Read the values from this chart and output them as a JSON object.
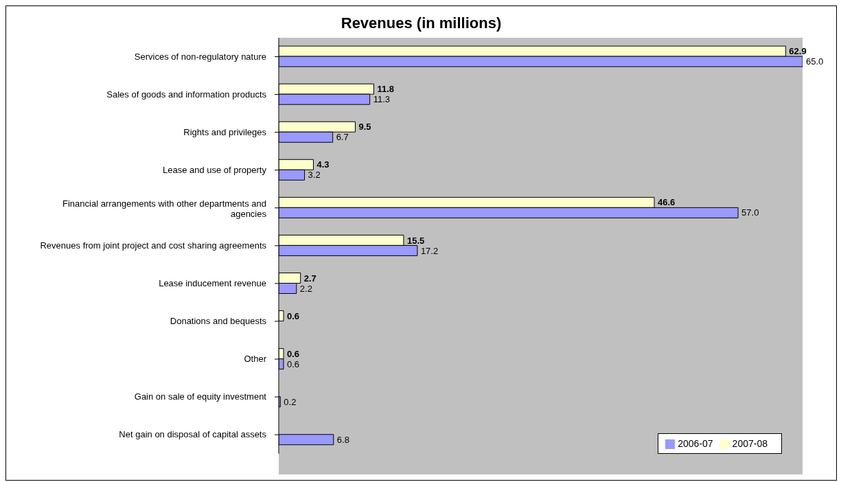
{
  "chart_data": {
    "type": "bar",
    "orientation": "horizontal",
    "title": "Revenues (in millions)",
    "categories": [
      "Services of non-regulatory nature",
      "Sales of goods and information products",
      "Rights and privileges",
      "Lease and use of property",
      "Financial arrangements with other departments and agencies",
      "Revenues from joint project and cost sharing agreements",
      "Lease inducement revenue",
      "Donations and bequests",
      "Other",
      "Gain on sale of equity investment",
      "Net gain on disposal of capital assets"
    ],
    "series": [
      {
        "name": "2007-08",
        "color": "#ffffcc",
        "values": [
          62.9,
          11.8,
          9.5,
          4.3,
          46.6,
          15.5,
          2.7,
          0.6,
          0.6,
          null,
          null
        ],
        "value_labels": [
          "62.9",
          "11.8",
          "9.5",
          "4.3",
          "46.6",
          "15.5",
          "2.7",
          "0.6",
          "0.6",
          null,
          null
        ]
      },
      {
        "name": "2006-07",
        "color": "#9999ff",
        "values": [
          65.0,
          11.3,
          6.7,
          3.2,
          57.0,
          17.2,
          2.2,
          null,
          0.6,
          0.2,
          6.8
        ],
        "value_labels": [
          "65.0",
          "11.3",
          "6.7",
          "3.2",
          "57.0",
          "17.2",
          "2.2",
          null,
          "0.6",
          "0.2",
          "6.8"
        ]
      }
    ],
    "legend": "bottom right",
    "grid": false
  }
}
